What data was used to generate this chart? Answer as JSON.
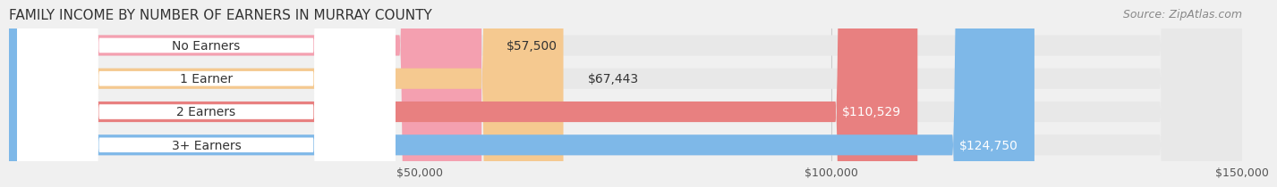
{
  "title": "FAMILY INCOME BY NUMBER OF EARNERS IN MURRAY COUNTY",
  "source": "Source: ZipAtlas.com",
  "categories": [
    "No Earners",
    "1 Earner",
    "2 Earners",
    "3+ Earners"
  ],
  "values": [
    57500,
    67443,
    110529,
    124750
  ],
  "value_labels": [
    "$57,500",
    "$67,443",
    "$110,529",
    "$124,750"
  ],
  "bar_colors": [
    "#F4A0B0",
    "#F5C990",
    "#E88080",
    "#7EB8E8"
  ],
  "bar_label_colors": [
    "#555555",
    "#555555",
    "#ffffff",
    "#ffffff"
  ],
  "xmin": 0,
  "xmax": 150000,
  "xticks": [
    50000,
    100000,
    150000
  ],
  "xtick_labels": [
    "$50,000",
    "$100,000",
    "$150,000"
  ],
  "bg_color": "#f0f0f0",
  "bar_bg_color": "#e8e8e8",
  "title_fontsize": 11,
  "source_fontsize": 9,
  "label_fontsize": 10,
  "tick_fontsize": 9
}
